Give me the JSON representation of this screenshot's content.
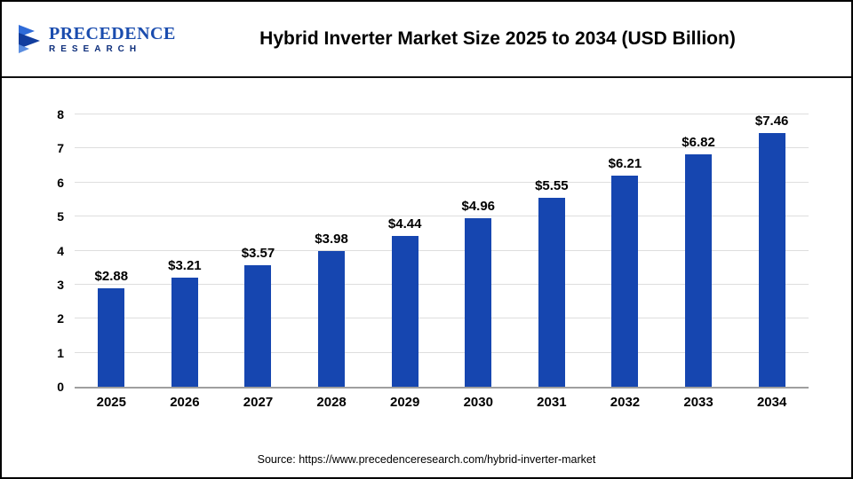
{
  "header": {
    "logo": {
      "line1": "PRECEDENCE",
      "line2": "RESEARCH"
    },
    "title": "Hybrid Inverter Market Size 2025 to 2034 (USD Billion)"
  },
  "chart_data": {
    "type": "bar",
    "title": "Hybrid Inverter Market Size 2025 to 2034 (USD Billion)",
    "categories": [
      "2025",
      "2026",
      "2027",
      "2028",
      "2029",
      "2030",
      "2031",
      "2032",
      "2033",
      "2034"
    ],
    "values": [
      2.88,
      3.21,
      3.57,
      3.98,
      4.44,
      4.96,
      5.55,
      6.21,
      6.82,
      7.46
    ],
    "labels": [
      "$2.88",
      "$3.21",
      "$3.57",
      "$3.98",
      "$4.44",
      "$4.96",
      "$5.55",
      "$6.21",
      "$6.82",
      "$7.46"
    ],
    "xlabel": "",
    "ylabel": "",
    "ylim": [
      0,
      8
    ],
    "yticks": [
      0,
      1,
      2,
      3,
      4,
      5,
      6,
      7,
      8
    ],
    "grid": true,
    "legend": "none",
    "bar_color": "#1646b0"
  },
  "footer": {
    "source": "Source: https://www.precedenceresearch.com/hybrid-inverter-market"
  },
  "colors": {
    "bar": "#1646b0",
    "gridline": "#dedede",
    "axis": "#9f9f9f",
    "header_rule": "#111111",
    "logo_blue": "#1a4cae",
    "logo_navy": "#0e2f7c",
    "text": "#000000"
  }
}
